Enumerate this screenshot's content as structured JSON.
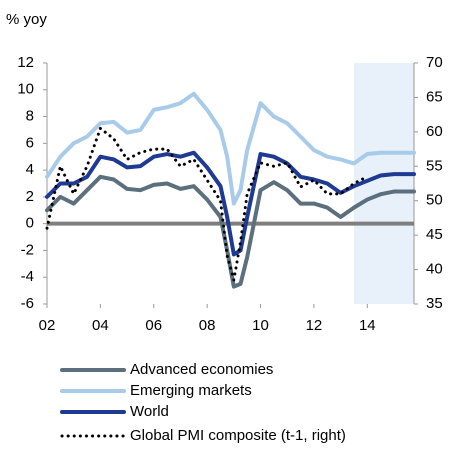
{
  "chart_data": {
    "type": "line",
    "ylabel": "% yoy",
    "x": [
      2002,
      2002.5,
      2003,
      2003.5,
      2004,
      2004.5,
      2005,
      2005.5,
      2006,
      2006.5,
      2007,
      2007.5,
      2008,
      2008.5,
      2008.75,
      2009,
      2009.25,
      2009.5,
      2010,
      2010.5,
      2011,
      2011.5,
      2012,
      2012.5,
      2013,
      2013.5,
      2014,
      2014.5,
      2015,
      2015.75
    ],
    "series": [
      {
        "name": "Advanced economies",
        "color": "#5b6f7c",
        "values": [
          1.0,
          2.0,
          1.5,
          2.5,
          3.5,
          3.3,
          2.6,
          2.5,
          2.9,
          3.0,
          2.6,
          2.8,
          1.8,
          0.5,
          -2.0,
          -4.7,
          -4.5,
          -2.5,
          2.5,
          3.1,
          2.5,
          1.5,
          1.5,
          1.2,
          0.5,
          1.2,
          1.8,
          2.2,
          2.4,
          2.4
        ]
      },
      {
        "name": "Emerging markets",
        "color": "#a9cbea",
        "values": [
          3.5,
          5.0,
          6.0,
          6.5,
          7.5,
          7.6,
          6.8,
          7.0,
          8.5,
          8.7,
          9.0,
          9.7,
          8.5,
          7.0,
          5.0,
          1.5,
          2.5,
          5.5,
          9.0,
          8.0,
          7.5,
          6.5,
          5.5,
          5.0,
          4.8,
          4.5,
          5.2,
          5.3,
          5.3,
          5.3
        ]
      },
      {
        "name": "World",
        "color": "#1f3a93",
        "values": [
          2.0,
          3.0,
          3.0,
          3.5,
          5.0,
          4.8,
          4.2,
          4.3,
          5.0,
          5.2,
          5.0,
          5.3,
          4.2,
          2.8,
          0.5,
          -2.3,
          -2.0,
          0.5,
          5.2,
          5.0,
          4.5,
          3.5,
          3.3,
          3.0,
          2.3,
          2.8,
          3.2,
          3.6,
          3.7,
          3.7
        ]
      },
      {
        "name": "Global PMI composite (t-1, right)",
        "color": "#000000",
        "dotted": true,
        "axis": "y2",
        "values": [
          46,
          55,
          51,
          55,
          60.5,
          59,
          56,
          57,
          57.5,
          57.5,
          55,
          56,
          53,
          50,
          42,
          38.5,
          44,
          51,
          55.5,
          55,
          55.5,
          52,
          53,
          51,
          51,
          52.5,
          53.5,
          null,
          null,
          null
        ]
      }
    ],
    "xlim": [
      2002,
      2015.75
    ],
    "xticks": [
      {
        "value": 2002,
        "label": "02"
      },
      {
        "value": 2004,
        "label": "04"
      },
      {
        "value": 2006,
        "label": "06"
      },
      {
        "value": 2008,
        "label": "08"
      },
      {
        "value": 2010,
        "label": "10"
      },
      {
        "value": 2012,
        "label": "12"
      },
      {
        "value": 2014,
        "label": "14"
      }
    ],
    "ylim": [
      -6,
      12
    ],
    "yticks": [
      -6,
      -4,
      -2,
      0,
      2,
      4,
      6,
      8,
      10,
      12
    ],
    "y2lim": [
      35,
      70
    ],
    "y2ticks": [
      35,
      40,
      45,
      50,
      55,
      60,
      65,
      70
    ],
    "shaded_from": 2013.5,
    "shade_color": "#e8f0fa"
  }
}
